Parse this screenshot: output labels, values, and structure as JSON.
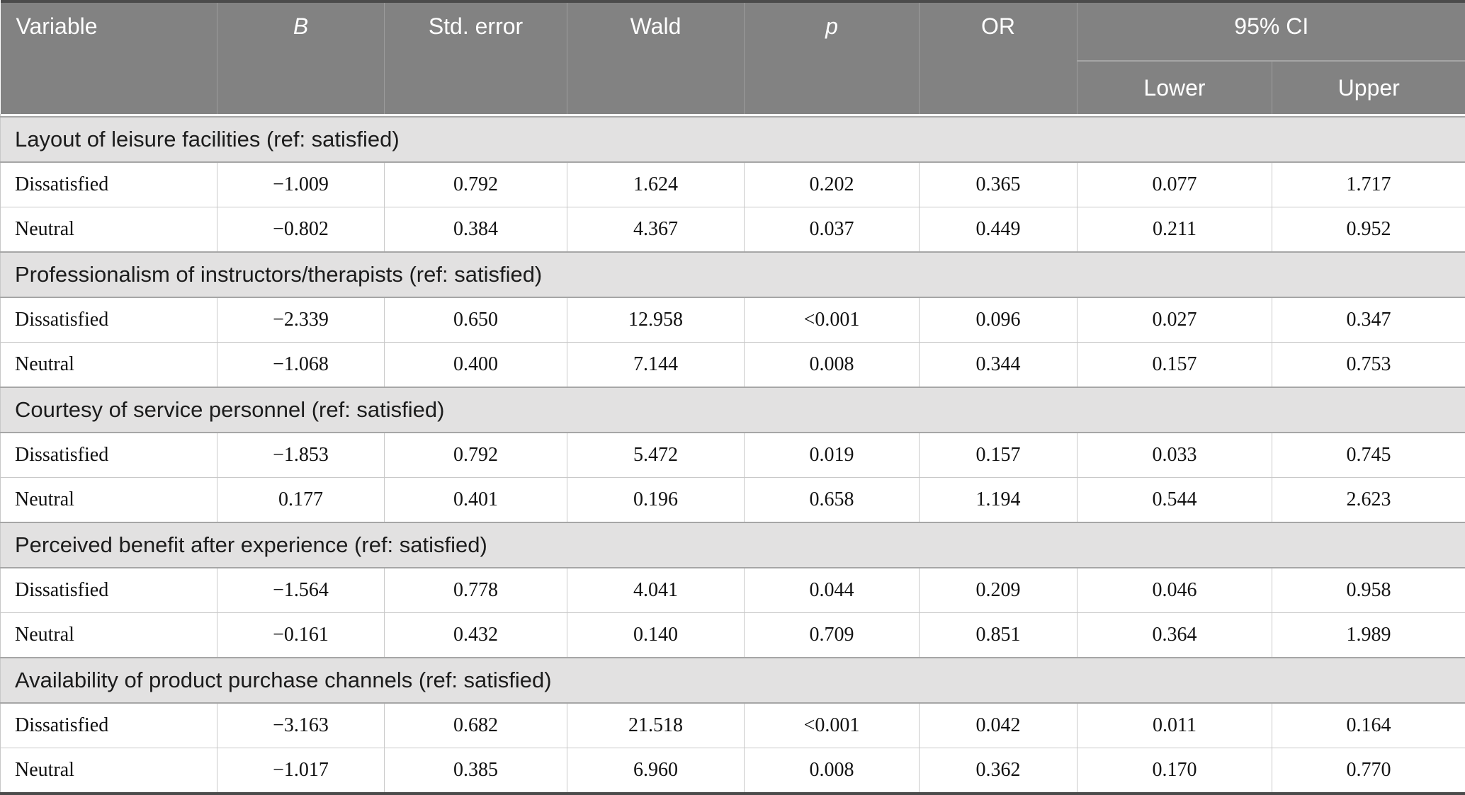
{
  "header": {
    "variable": "Variable",
    "b": "B",
    "std_error": "Std. error",
    "wald": "Wald",
    "p": "p",
    "or": "OR",
    "ci": "95% CI",
    "ci_lower": "Lower",
    "ci_upper": "Upper"
  },
  "sections": [
    {
      "title": "Layout of leisure facilities (ref: satisfied)",
      "rows": [
        {
          "label": "Dissatisfied",
          "values": [
            "−1.009",
            "0.792",
            "1.624",
            "0.202",
            "0.365",
            "0.077",
            "1.717"
          ]
        },
        {
          "label": "Neutral",
          "values": [
            "−0.802",
            "0.384",
            "4.367",
            "0.037",
            "0.449",
            "0.211",
            "0.952"
          ]
        }
      ]
    },
    {
      "title": "Professionalism of instructors/therapists (ref: satisfied)",
      "rows": [
        {
          "label": "Dissatisfied",
          "values": [
            "−2.339",
            "0.650",
            "12.958",
            "<0.001",
            "0.096",
            "0.027",
            "0.347"
          ]
        },
        {
          "label": "Neutral",
          "values": [
            "−1.068",
            "0.400",
            "7.144",
            "0.008",
            "0.344",
            "0.157",
            "0.753"
          ]
        }
      ]
    },
    {
      "title": "Courtesy of service personnel (ref: satisfied)",
      "rows": [
        {
          "label": "Dissatisfied",
          "values": [
            "−1.853",
            "0.792",
            "5.472",
            "0.019",
            "0.157",
            "0.033",
            "0.745"
          ]
        },
        {
          "label": "Neutral",
          "values": [
            "0.177",
            "0.401",
            "0.196",
            "0.658",
            "1.194",
            "0.544",
            "2.623"
          ]
        }
      ]
    },
    {
      "title": "Perceived benefit after experience (ref: satisfied)",
      "rows": [
        {
          "label": "Dissatisfied",
          "values": [
            "−1.564",
            "0.778",
            "4.041",
            "0.044",
            "0.209",
            "0.046",
            "0.958"
          ]
        },
        {
          "label": "Neutral",
          "values": [
            "−0.161",
            "0.432",
            "0.140",
            "0.709",
            "0.851",
            "0.364",
            "1.989"
          ]
        }
      ]
    },
    {
      "title": "Availability of product purchase channels (ref: satisfied)",
      "rows": [
        {
          "label": "Dissatisfied",
          "values": [
            "−3.163",
            "0.682",
            "21.518",
            "<0.001",
            "0.042",
            "0.011",
            "0.164"
          ]
        },
        {
          "label": "Neutral",
          "values": [
            "−1.017",
            "0.385",
            "6.960",
            "0.008",
            "0.362",
            "0.170",
            "0.770"
          ]
        }
      ]
    }
  ],
  "colors": {
    "header_bg": "#828282",
    "header_divider": "#9d9d9d",
    "section_bg": "#e2e1e1",
    "section_border": "#a6a6a6",
    "grid_line": "#c8c8c8",
    "top_bottom_rule": "#4b4b4b"
  }
}
